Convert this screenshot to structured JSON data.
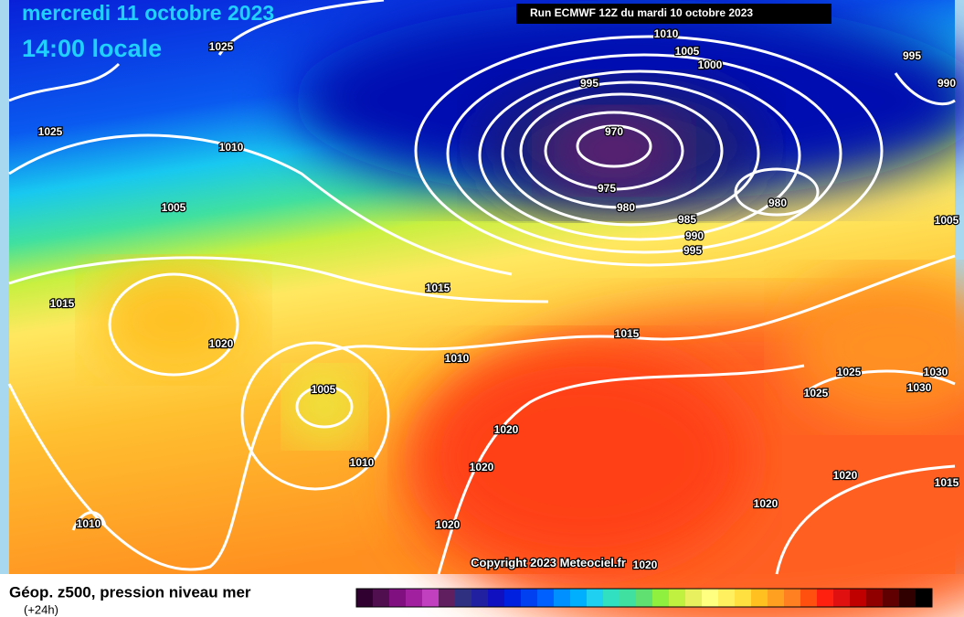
{
  "header": {
    "date": "mercredi 11 octobre 2023",
    "time": "14:00 locale",
    "run": "Run ECMWF 12Z du mardi 10 octobre 2023"
  },
  "isobar_labels": [
    "1025",
    "1025",
    "1010",
    "1005",
    "1015",
    "1020",
    "1015",
    "1010",
    "1005",
    "1010",
    "1010",
    "1020",
    "1020",
    "1020",
    "1020",
    "1015",
    "1010",
    "1005",
    "1000",
    "995",
    "970",
    "975",
    "980",
    "985",
    "990",
    "995",
    "980",
    "995",
    "990",
    "1025",
    "1025",
    "1030",
    "1030",
    "1020",
    "1020",
    "1015",
    "1005"
  ],
  "copyright": "Copyright 2023 Meteociel.fr",
  "footer": {
    "title": "Géop. z500, pression niveau mer",
    "lead": "(+24h)"
  }
}
